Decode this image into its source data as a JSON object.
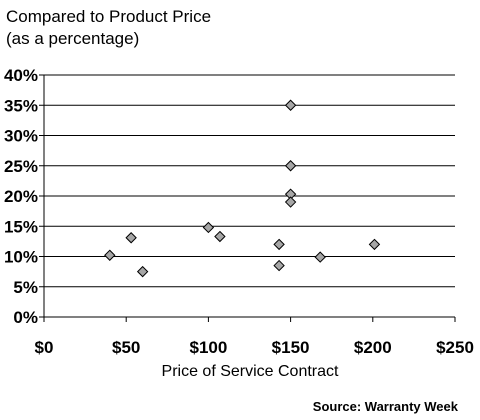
{
  "chart_data": {
    "type": "scatter",
    "title": "Compared to Product Price",
    "subtitle": "(as a percentage)",
    "xlabel": "Price of Service Contract",
    "ylabel": "",
    "xlim": [
      0,
      250
    ],
    "ylim": [
      0,
      40
    ],
    "x_ticks": [
      {
        "value": 0,
        "label": "$0"
      },
      {
        "value": 50,
        "label": "$50"
      },
      {
        "value": 100,
        "label": "$100"
      },
      {
        "value": 150,
        "label": "$150"
      },
      {
        "value": 200,
        "label": "$200"
      },
      {
        "value": 250,
        "label": "$250"
      }
    ],
    "y_ticks": [
      {
        "value": 0,
        "label": "0%"
      },
      {
        "value": 5,
        "label": "5%"
      },
      {
        "value": 10,
        "label": "10%"
      },
      {
        "value": 15,
        "label": "15%"
      },
      {
        "value": 20,
        "label": "20%"
      },
      {
        "value": 25,
        "label": "25%"
      },
      {
        "value": 30,
        "label": "30%"
      },
      {
        "value": 35,
        "label": "35%"
      },
      {
        "value": 40,
        "label": "40%"
      }
    ],
    "grid": "horizontal",
    "marker": "diamond",
    "marker_color": "#a6a6a6",
    "points": [
      {
        "x": 40,
        "y": 10.2
      },
      {
        "x": 53,
        "y": 13.1
      },
      {
        "x": 60,
        "y": 7.5
      },
      {
        "x": 100,
        "y": 14.8
      },
      {
        "x": 107,
        "y": 13.3
      },
      {
        "x": 143,
        "y": 12.0
      },
      {
        "x": 143,
        "y": 8.5
      },
      {
        "x": 150,
        "y": 35.0
      },
      {
        "x": 150,
        "y": 25.0
      },
      {
        "x": 150,
        "y": 20.3
      },
      {
        "x": 150,
        "y": 19.0
      },
      {
        "x": 168,
        "y": 9.9
      },
      {
        "x": 201,
        "y": 12.0
      }
    ]
  },
  "source": "Source: Warranty Week"
}
